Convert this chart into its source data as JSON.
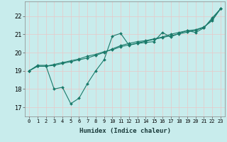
{
  "xlabel": "Humidex (Indice chaleur)",
  "background_color": "#c8ecec",
  "grid_color": "#e8c8c8",
  "line_color": "#1a7a6a",
  "xlim": [
    -0.5,
    23.5
  ],
  "ylim": [
    16.5,
    22.8
  ],
  "yticks": [
    17,
    18,
    19,
    20,
    21,
    22
  ],
  "xticks": [
    0,
    1,
    2,
    3,
    4,
    5,
    6,
    7,
    8,
    9,
    10,
    11,
    12,
    13,
    14,
    15,
    16,
    17,
    18,
    19,
    20,
    21,
    22,
    23
  ],
  "series": [
    [
      19.0,
      19.3,
      19.3,
      18.0,
      18.1,
      17.2,
      17.5,
      18.3,
      19.0,
      19.6,
      20.9,
      21.05,
      20.4,
      20.5,
      20.55,
      20.6,
      21.1,
      20.85,
      21.05,
      21.2,
      21.1,
      21.35,
      21.9,
      22.4
    ],
    [
      19.0,
      19.25,
      19.25,
      19.3,
      19.4,
      19.5,
      19.6,
      19.7,
      19.85,
      20.0,
      20.2,
      20.38,
      20.5,
      20.6,
      20.65,
      20.75,
      20.85,
      21.0,
      21.1,
      21.2,
      21.25,
      21.4,
      21.75,
      22.4
    ],
    [
      19.0,
      19.25,
      19.25,
      19.35,
      19.45,
      19.55,
      19.65,
      19.8,
      19.9,
      20.05,
      20.15,
      20.32,
      20.42,
      20.52,
      20.62,
      20.72,
      20.82,
      20.92,
      21.02,
      21.12,
      21.22,
      21.37,
      21.82,
      22.4
    ]
  ]
}
